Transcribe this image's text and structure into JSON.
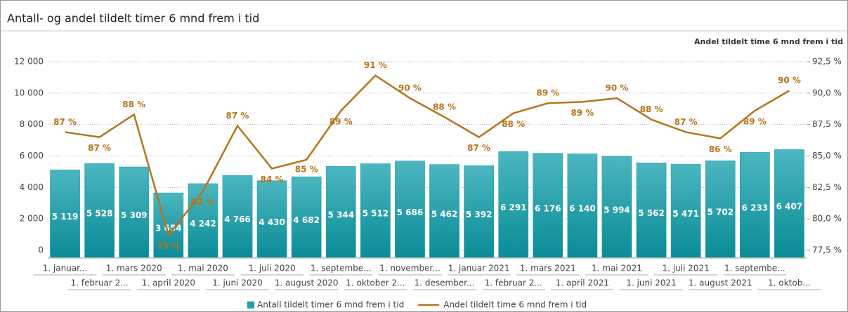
{
  "chart_data": {
    "type": "bar_line",
    "title": "Antall- og andel tildelt timer 6 mnd frem i tid",
    "y2_label": "Andel tildelt time 6 mnd frem i tid",
    "categories": [
      "1. januar...",
      "1. februar 2...",
      "1. mars 2020",
      "1. april 2020",
      "1. mai 2020",
      "1. juni 2020",
      "1. juli 2020",
      "1. august 2020",
      "1. septembe...",
      "1. oktober 2...",
      "1. november...",
      "1. desember...",
      "1. januar 2021",
      "1. februar 2...",
      "1. mars 2021",
      "1. april 2021",
      "1. mai 2021",
      "1. juni 2021",
      "1. juli 2021",
      "1. august 2021",
      "1. septembe...",
      "1. oktob..."
    ],
    "series": [
      {
        "name": "Antall tildelt timer 6 mnd frem i tid",
        "color": "#1e9ea8",
        "type": "bar",
        "values": [
          5119,
          5528,
          5309,
          3654,
          4242,
          4766,
          4430,
          4682,
          5344,
          5512,
          5686,
          5462,
          5392,
          6291,
          6176,
          6140,
          5994,
          5562,
          5471,
          5702,
          6233,
          6407
        ],
        "value_labels": [
          "5 119",
          "5 528",
          "5 309",
          "3 654",
          "4 242",
          "4 766",
          "4 430",
          "4 682",
          "5 344",
          "5 512",
          "5 686",
          "5 462",
          "5 392",
          "6 291",
          "6 176",
          "6 140",
          "5 994",
          "5 562",
          "5 471",
          "5 702",
          "6 233",
          "6 407"
        ]
      },
      {
        "name": "Andel tildelt time 6 mnd frem i tid",
        "color": "#b8731c",
        "type": "line",
        "axis": "y2",
        "values": [
          86.9,
          86.5,
          88.3,
          78.7,
          82.2,
          87.4,
          84.0,
          84.7,
          88.6,
          91.4,
          89.6,
          88.1,
          86.5,
          88.4,
          89.2,
          89.3,
          89.6,
          87.9,
          86.9,
          86.4,
          88.6,
          90.2
        ],
        "value_labels": [
          "87 %",
          "87 %",
          "88 %",
          "79 %",
          "82 %",
          "87 %",
          "84 %",
          "85 %",
          "89 %",
          "91 %",
          "90 %",
          "88 %",
          "87 %",
          "88 %",
          "89 %",
          "89 %",
          "90 %",
          "88 %",
          "87 %",
          "86 %",
          "89 %",
          "90 %"
        ]
      }
    ],
    "ylim": [
      0,
      12000
    ],
    "yticks": [
      0,
      {
        "value": 2000,
        "label": "2 000"
      },
      {
        "value": 4000,
        "label": "4 000"
      },
      {
        "value": 6000,
        "label": "6 000"
      },
      {
        "value": 8000,
        "label": "8 000"
      },
      {
        "value": 10000,
        "label": "10 000"
      },
      {
        "value": 12000,
        "label": "12 000"
      }
    ],
    "y2lim": [
      77.5,
      92.5
    ],
    "y2ticks": [
      {
        "value": 77.5,
        "label": "77,5 %"
      },
      {
        "value": 80,
        "label": "80,0 %"
      },
      {
        "value": 82.5,
        "label": "82,5 %"
      },
      {
        "value": 85,
        "label": "85,0 %"
      },
      {
        "value": 87.5,
        "label": "87,5 %"
      },
      {
        "value": 90,
        "label": "90,0 %"
      },
      {
        "value": 92.5,
        "label": "92,5 %"
      }
    ],
    "grid": true
  }
}
